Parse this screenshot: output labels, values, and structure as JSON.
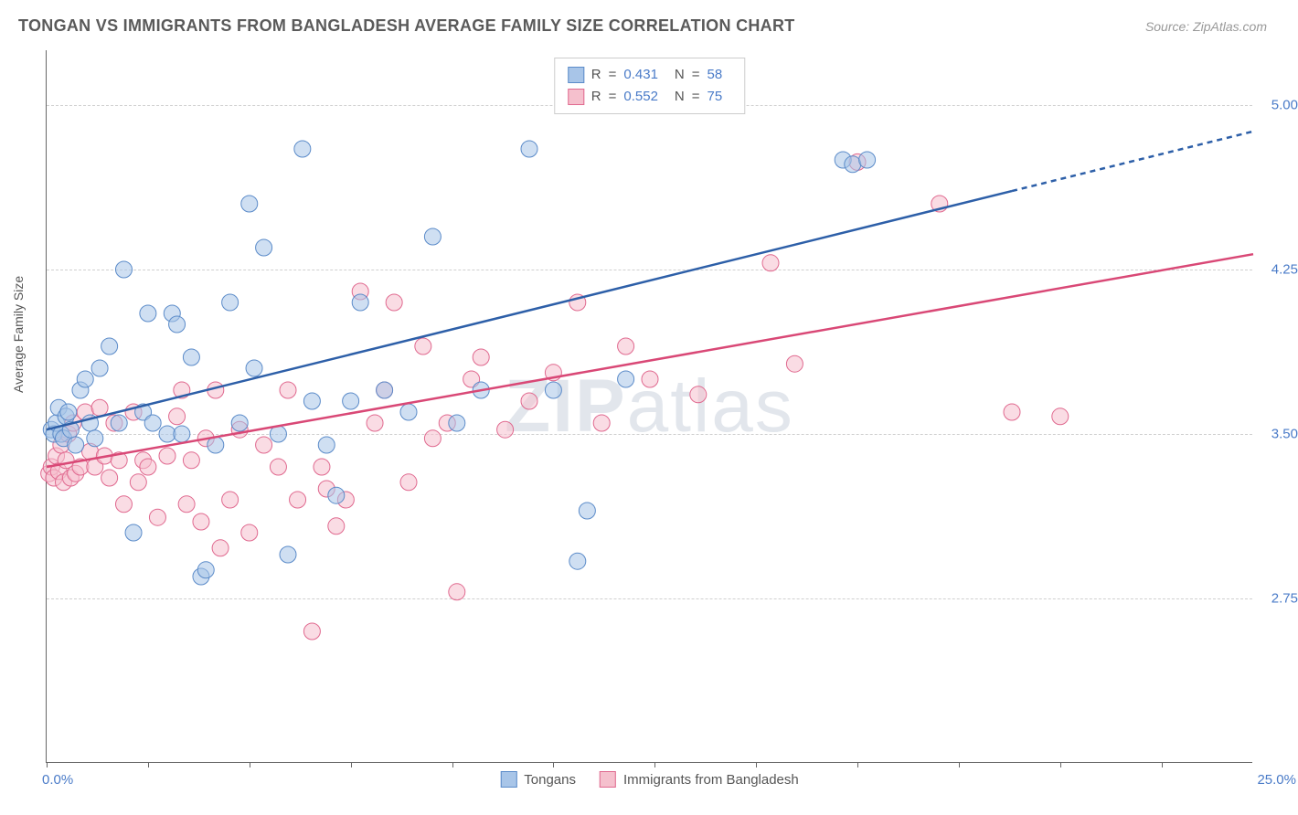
{
  "header": {
    "title": "TONGAN VS IMMIGRANTS FROM BANGLADESH AVERAGE FAMILY SIZE CORRELATION CHART",
    "source": "Source: ZipAtlas.com"
  },
  "chart": {
    "type": "scatter",
    "y_axis_label": "Average Family Size",
    "x_min": 0.0,
    "x_max": 25.0,
    "y_min": 2.0,
    "y_max": 5.25,
    "x_tick_label_left": "0.0%",
    "x_tick_label_right": "25.0%",
    "y_ticks": [
      2.75,
      3.5,
      4.25,
      5.0
    ],
    "y_tick_labels": [
      "2.75",
      "3.50",
      "4.25",
      "5.00"
    ],
    "x_tick_positions": [
      0,
      2.1,
      4.2,
      6.3,
      8.4,
      10.5,
      12.6,
      14.7,
      16.8,
      18.9,
      21.0,
      23.1
    ],
    "grid_color": "#d0d0d0",
    "axis_color": "#666666",
    "background_color": "#ffffff",
    "marker_radius": 9,
    "marker_opacity": 0.55,
    "line_width": 2.5,
    "watermark_text_1": "ZIP",
    "watermark_text_2": "atlas"
  },
  "series": {
    "tongans": {
      "label": "Tongans",
      "color_fill": "#a8c5e8",
      "color_stroke": "#5b8bc9",
      "line_color": "#2d5fa8",
      "r_value": "0.431",
      "n_value": "58",
      "trend_start": {
        "x": 0.0,
        "y": 3.52
      },
      "trend_end": {
        "x": 25.0,
        "y": 4.88
      },
      "trend_solid_end_x": 20.0,
      "points": [
        [
          0.1,
          3.52
        ],
        [
          0.15,
          3.5
        ],
        [
          0.2,
          3.55
        ],
        [
          0.25,
          3.62
        ],
        [
          0.3,
          3.5
        ],
        [
          0.35,
          3.48
        ],
        [
          0.4,
          3.58
        ],
        [
          0.45,
          3.6
        ],
        [
          0.5,
          3.52
        ],
        [
          0.6,
          3.45
        ],
        [
          0.7,
          3.7
        ],
        [
          0.8,
          3.75
        ],
        [
          0.9,
          3.55
        ],
        [
          1.0,
          3.48
        ],
        [
          1.1,
          3.8
        ],
        [
          1.3,
          3.9
        ],
        [
          1.5,
          3.55
        ],
        [
          1.6,
          4.25
        ],
        [
          1.8,
          3.05
        ],
        [
          2.0,
          3.6
        ],
        [
          2.1,
          4.05
        ],
        [
          2.2,
          3.55
        ],
        [
          2.5,
          3.5
        ],
        [
          2.6,
          4.05
        ],
        [
          2.7,
          4.0
        ],
        [
          2.8,
          3.5
        ],
        [
          3.0,
          3.85
        ],
        [
          3.2,
          2.85
        ],
        [
          3.3,
          2.88
        ],
        [
          3.5,
          3.45
        ],
        [
          3.8,
          4.1
        ],
        [
          4.0,
          3.55
        ],
        [
          4.2,
          4.55
        ],
        [
          4.3,
          3.8
        ],
        [
          4.5,
          4.35
        ],
        [
          4.8,
          3.5
        ],
        [
          5.0,
          2.95
        ],
        [
          5.3,
          4.8
        ],
        [
          5.5,
          3.65
        ],
        [
          5.8,
          3.45
        ],
        [
          6.0,
          3.22
        ],
        [
          6.3,
          3.65
        ],
        [
          6.5,
          4.1
        ],
        [
          7.0,
          3.7
        ],
        [
          7.5,
          3.6
        ],
        [
          8.0,
          4.4
        ],
        [
          8.5,
          3.55
        ],
        [
          9.0,
          3.7
        ],
        [
          10.0,
          4.8
        ],
        [
          10.5,
          3.7
        ],
        [
          11.0,
          2.92
        ],
        [
          11.2,
          3.15
        ],
        [
          12.0,
          3.75
        ],
        [
          16.5,
          4.75
        ],
        [
          16.7,
          4.73
        ],
        [
          17.0,
          4.75
        ]
      ]
    },
    "bangladesh": {
      "label": "Immigrants from Bangladesh",
      "color_fill": "#f5c0cd",
      "color_stroke": "#e0698f",
      "line_color": "#d94876",
      "r_value": "0.552",
      "n_value": "75",
      "trend_start": {
        "x": 0.0,
        "y": 3.35
      },
      "trend_end": {
        "x": 25.0,
        "y": 4.32
      },
      "trend_solid_end_x": 25.0,
      "points": [
        [
          0.05,
          3.32
        ],
        [
          0.1,
          3.35
        ],
        [
          0.15,
          3.3
        ],
        [
          0.2,
          3.4
        ],
        [
          0.25,
          3.33
        ],
        [
          0.3,
          3.45
        ],
        [
          0.35,
          3.28
        ],
        [
          0.4,
          3.38
        ],
        [
          0.45,
          3.5
        ],
        [
          0.5,
          3.3
        ],
        [
          0.55,
          3.55
        ],
        [
          0.6,
          3.32
        ],
        [
          0.7,
          3.35
        ],
        [
          0.8,
          3.6
        ],
        [
          0.9,
          3.42
        ],
        [
          1.0,
          3.35
        ],
        [
          1.1,
          3.62
        ],
        [
          1.2,
          3.4
        ],
        [
          1.3,
          3.3
        ],
        [
          1.4,
          3.55
        ],
        [
          1.5,
          3.38
        ],
        [
          1.6,
          3.18
        ],
        [
          1.8,
          3.6
        ],
        [
          1.9,
          3.28
        ],
        [
          2.0,
          3.38
        ],
        [
          2.1,
          3.35
        ],
        [
          2.3,
          3.12
        ],
        [
          2.5,
          3.4
        ],
        [
          2.7,
          3.58
        ],
        [
          2.8,
          3.7
        ],
        [
          2.9,
          3.18
        ],
        [
          3.0,
          3.38
        ],
        [
          3.2,
          3.1
        ],
        [
          3.3,
          3.48
        ],
        [
          3.5,
          3.7
        ],
        [
          3.6,
          2.98
        ],
        [
          3.8,
          3.2
        ],
        [
          4.0,
          3.52
        ],
        [
          4.2,
          3.05
        ],
        [
          4.5,
          3.45
        ],
        [
          4.8,
          3.35
        ],
        [
          5.0,
          3.7
        ],
        [
          5.2,
          3.2
        ],
        [
          5.5,
          2.6
        ],
        [
          5.7,
          3.35
        ],
        [
          5.8,
          3.25
        ],
        [
          6.0,
          3.08
        ],
        [
          6.2,
          3.2
        ],
        [
          6.5,
          4.15
        ],
        [
          6.8,
          3.55
        ],
        [
          7.0,
          3.7
        ],
        [
          7.2,
          4.1
        ],
        [
          7.5,
          3.28
        ],
        [
          7.8,
          3.9
        ],
        [
          8.0,
          3.48
        ],
        [
          8.3,
          3.55
        ],
        [
          8.5,
          2.78
        ],
        [
          8.8,
          3.75
        ],
        [
          9.0,
          3.85
        ],
        [
          9.5,
          3.52
        ],
        [
          10.0,
          3.65
        ],
        [
          10.5,
          3.78
        ],
        [
          11.0,
          4.1
        ],
        [
          11.5,
          3.55
        ],
        [
          12.0,
          3.9
        ],
        [
          12.5,
          3.75
        ],
        [
          13.5,
          3.68
        ],
        [
          15.0,
          4.28
        ],
        [
          15.5,
          3.82
        ],
        [
          16.8,
          4.74
        ],
        [
          18.5,
          4.55
        ],
        [
          20.0,
          3.6
        ],
        [
          21.0,
          3.58
        ]
      ]
    }
  },
  "stats_box": {
    "r_label": "R",
    "n_label": "N",
    "equals": "="
  }
}
